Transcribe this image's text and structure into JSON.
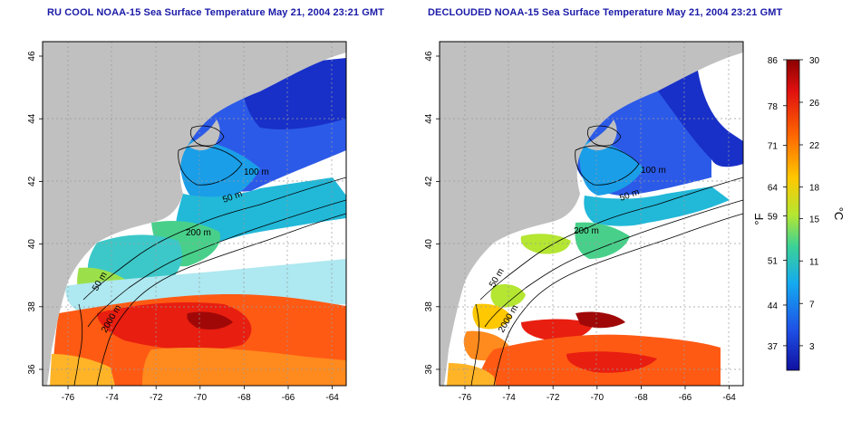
{
  "panels": [
    {
      "title": "RU COOL NOAA-15 Sea Surface Temperature May 21, 2004 23:21 GMT",
      "contour_labels": [
        "100 m",
        "50 m",
        "200 m",
        "50 m",
        "2000 m"
      ]
    },
    {
      "title": "DECLOUDED NOAA-15 Sea Surface Temperature May 21, 2004 23:21 GMT",
      "contour_labels": [
        "100 m",
        "50 m",
        "200 m",
        "50 m",
        "2000 m"
      ]
    }
  ],
  "axes": {
    "lon_ticks": [
      "-76",
      "-74",
      "-72",
      "-70",
      "-68",
      "-66",
      "-64"
    ],
    "lat_ticks": [
      "36",
      "38",
      "40",
      "42",
      "44",
      "46"
    ]
  },
  "colorbar": {
    "fahrenheit_ticks": [
      "86",
      "78",
      "71",
      "64",
      "59",
      "51",
      "44",
      "37"
    ],
    "celsius_ticks": [
      "30",
      "26",
      "22",
      "18",
      "15",
      "11",
      "7",
      "3"
    ],
    "fahrenheit_label": "°F",
    "celsius_label": "°C",
    "colors": [
      "#8b0000",
      "#e01010",
      "#ff6a00",
      "#ffc800",
      "#b4e632",
      "#3cd296",
      "#14aaf0",
      "#1e50e6",
      "#1010a0"
    ]
  },
  "colors": {
    "land": "#c0c0c0",
    "title": "#1a1aa8"
  }
}
